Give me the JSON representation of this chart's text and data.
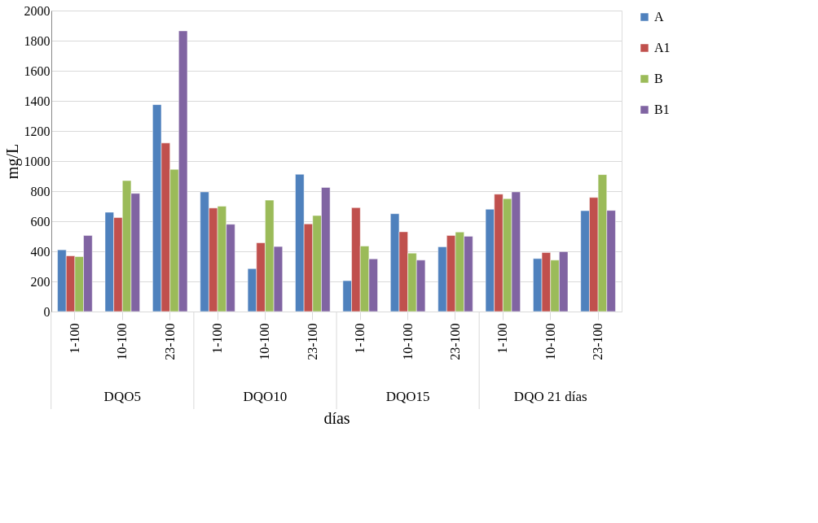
{
  "chart_data": {
    "type": "bar",
    "xlabel": "días",
    "ylabel": "mg/L",
    "categories": [
      "1-100",
      "10-100",
      "23-100",
      "1-100",
      "10-100",
      "23-100",
      "1-100",
      "10-100",
      "23-100",
      "1-100",
      "10-100",
      "23-100"
    ],
    "annotations": [
      "DQO5",
      "DQO10",
      "DQO15",
      "DQO 21 días"
    ],
    "series": [
      {
        "name": "A",
        "color": "#4f81bd",
        "values": [
          410,
          660,
          1375,
          795,
          285,
          912,
          205,
          650,
          430,
          680,
          352,
          670
        ]
      },
      {
        "name": "A1",
        "color": "#c0504d",
        "values": [
          370,
          625,
          1120,
          688,
          457,
          582,
          690,
          530,
          505,
          780,
          392,
          758
        ]
      },
      {
        "name": "B",
        "color": "#9bbb59",
        "values": [
          365,
          870,
          945,
          700,
          740,
          638,
          435,
          388,
          528,
          750,
          342,
          910
        ]
      },
      {
        "name": "B1",
        "color": "#8064a2",
        "values": [
          505,
          785,
          1865,
          580,
          432,
          825,
          350,
          342,
          500,
          795,
          398,
          672
        ]
      }
    ],
    "ylim": [
      0,
      2000
    ],
    "yticks": [
      0,
      200,
      400,
      600,
      800,
      1000,
      1200,
      1400,
      1600,
      1800,
      2000
    ],
    "grid": "y",
    "legend": "right"
  }
}
